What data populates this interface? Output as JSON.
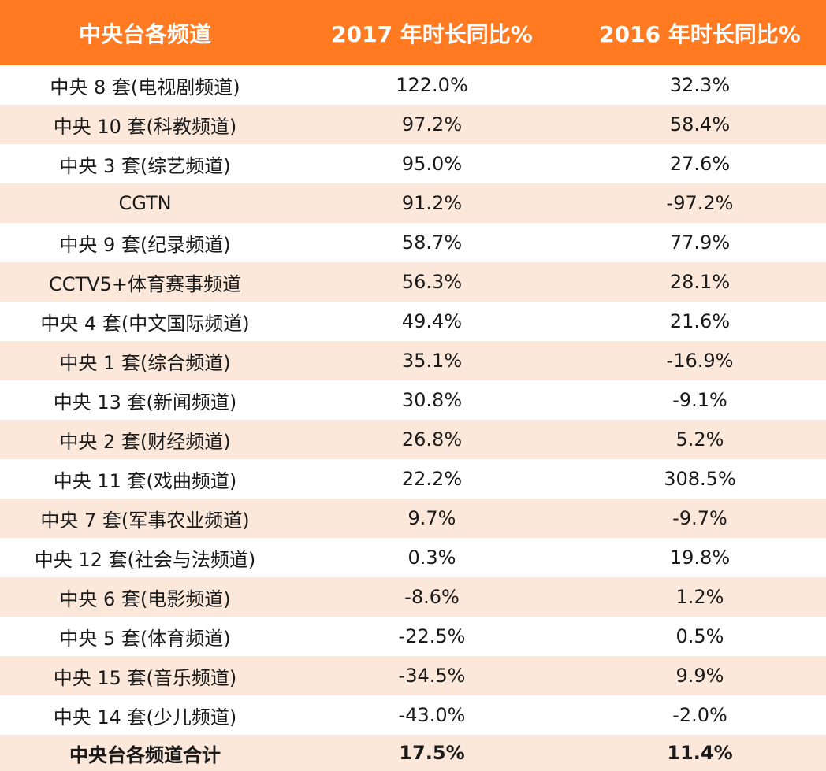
{
  "header": {
    "col_channel": "中央台各频道",
    "col_2017": "2017 年时长同比%",
    "col_2016": "2016 年时长同比%"
  },
  "rows": [
    {
      "channel": "中央 8 套(电视剧频道)",
      "y2017": "122.0%",
      "y2016": "32.3%"
    },
    {
      "channel": "中央 10 套(科教频道)",
      "y2017": "97.2%",
      "y2016": "58.4%"
    },
    {
      "channel": "中央 3 套(综艺频道)",
      "y2017": "95.0%",
      "y2016": "27.6%"
    },
    {
      "channel": "CGTN",
      "y2017": "91.2%",
      "y2016": "-97.2%"
    },
    {
      "channel": "中央 9 套(纪录频道)",
      "y2017": "58.7%",
      "y2016": "77.9%"
    },
    {
      "channel": "CCTV5+体育赛事频道",
      "y2017": "56.3%",
      "y2016": "28.1%"
    },
    {
      "channel": "中央 4 套(中文国际频道)",
      "y2017": "49.4%",
      "y2016": "21.6%"
    },
    {
      "channel": "中央 1 套(综合频道)",
      "y2017": "35.1%",
      "y2016": "-16.9%"
    },
    {
      "channel": "中央 13 套(新闻频道)",
      "y2017": "30.8%",
      "y2016": "-9.1%"
    },
    {
      "channel": "中央 2 套(财经频道)",
      "y2017": "26.8%",
      "y2016": "5.2%"
    },
    {
      "channel": "中央 11 套(戏曲频道)",
      "y2017": "22.2%",
      "y2016": "308.5%"
    },
    {
      "channel": "中央 7 套(军事农业频道)",
      "y2017": "9.7%",
      "y2016": "-9.7%"
    },
    {
      "channel": "中央 12 套(社会与法频道)",
      "y2017": "0.3%",
      "y2016": "19.8%"
    },
    {
      "channel": "中央 6 套(电影频道)",
      "y2017": "-8.6%",
      "y2016": "1.2%"
    },
    {
      "channel": "中央 5 套(体育频道)",
      "y2017": "-22.5%",
      "y2016": "0.5%"
    },
    {
      "channel": "中央 15 套(音乐频道)",
      "y2017": "-34.5%",
      "y2016": "9.9%"
    },
    {
      "channel": "中央 14 套(少儿频道)",
      "y2017": "-43.0%",
      "y2016": "-2.0%"
    }
  ],
  "total": {
    "channel": "中央台各频道合计",
    "y2017": "17.5%",
    "y2016": "11.4%"
  },
  "colors": {
    "header_bg": "#ff7a21",
    "stripe": "#fbe8da"
  }
}
